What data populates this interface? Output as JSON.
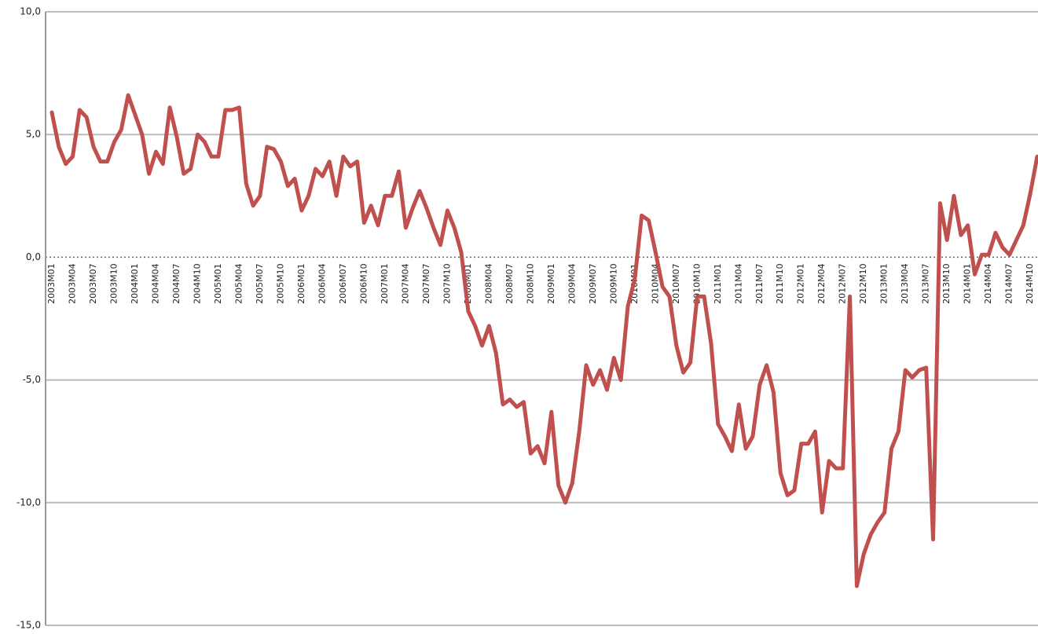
{
  "chart_data": {
    "type": "line",
    "categories": [
      "2003M01",
      null,
      null,
      "2003M04",
      null,
      null,
      "2003M07",
      null,
      null,
      "2003M10",
      null,
      null,
      "2004M01",
      null,
      null,
      "2004M04",
      null,
      null,
      "2004M07",
      null,
      null,
      "2004M10",
      null,
      null,
      "2005M01",
      null,
      null,
      "2005M04",
      null,
      null,
      "2005M07",
      null,
      null,
      "2005M10",
      null,
      null,
      "2006M01",
      null,
      null,
      "2006M04",
      null,
      null,
      "2006M07",
      null,
      null,
      "2006M10",
      null,
      null,
      "2007M01",
      null,
      null,
      "2007M04",
      null,
      null,
      "2007M07",
      null,
      null,
      "2007M10",
      null,
      null,
      "2008M01",
      null,
      null,
      "2008M04",
      null,
      null,
      "2008M07",
      null,
      null,
      "2008M10",
      null,
      null,
      "2009M01",
      null,
      null,
      "2009M04",
      null,
      null,
      "2009M07",
      null,
      null,
      "2009M10",
      null,
      null,
      "2010M01",
      null,
      null,
      "2010M04",
      null,
      null,
      "2010M07",
      null,
      null,
      "2010M10",
      null,
      null,
      "2011M01",
      null,
      null,
      "2011M04",
      null,
      null,
      "2011M07",
      null,
      null,
      "2011M10",
      null,
      null,
      "2012M01",
      null,
      null,
      "2012M04",
      null,
      null,
      "2012M07",
      null,
      null,
      "2012M10",
      null,
      null,
      "2013M01",
      null,
      null,
      "2013M04",
      null,
      null,
      "2013M07",
      null,
      null,
      "2013M10",
      null,
      null,
      "2014M01",
      null,
      null,
      "2014M04",
      null,
      null,
      "2014M07",
      null,
      null,
      "2014M10",
      null
    ],
    "values": [
      5.9,
      4.5,
      3.8,
      4.1,
      6.0,
      5.7,
      4.5,
      3.9,
      3.9,
      4.7,
      5.2,
      6.6,
      5.8,
      5.0,
      3.4,
      4.3,
      3.8,
      6.1,
      4.9,
      3.4,
      3.6,
      5.0,
      4.7,
      4.1,
      4.1,
      6.0,
      6.0,
      6.1,
      3.0,
      2.1,
      2.5,
      4.5,
      4.4,
      3.9,
      2.9,
      3.2,
      1.9,
      2.5,
      3.6,
      3.3,
      3.9,
      2.5,
      4.1,
      3.7,
      3.9,
      1.4,
      2.1,
      1.3,
      2.5,
      2.5,
      3.5,
      1.2,
      2.0,
      2.7,
      2.0,
      1.2,
      0.5,
      1.9,
      1.2,
      0.2,
      -2.2,
      -2.8,
      -3.6,
      -2.8,
      -3.9,
      -6.0,
      -5.8,
      -6.1,
      -5.9,
      -8.0,
      -7.7,
      -8.4,
      -6.3,
      -9.3,
      -10.0,
      -9.2,
      -7.1,
      -4.4,
      -5.2,
      -4.6,
      -5.4,
      -4.1,
      -5.0,
      -2.0,
      -0.9,
      1.7,
      1.5,
      0.2,
      -1.2,
      -1.6,
      -3.6,
      -4.7,
      -4.3,
      -1.6,
      -1.6,
      -3.5,
      -6.8,
      -7.3,
      -7.9,
      -6.0,
      -7.8,
      -7.3,
      -5.2,
      -4.4,
      -5.5,
      -8.8,
      -9.7,
      -9.5,
      -7.6,
      -7.6,
      -7.1,
      -10.4,
      -8.3,
      -8.6,
      -8.6,
      -1.6,
      -13.4,
      -12.1,
      -11.3,
      -10.8,
      -10.4,
      -7.8,
      -7.1,
      -4.6,
      -4.9,
      -4.6,
      -4.5,
      -11.5,
      2.2,
      0.7,
      2.5,
      0.9,
      1.3,
      -0.7,
      0.1,
      0.1,
      1.0,
      0.4,
      0.1,
      0.7,
      1.3,
      2.6,
      4.1
    ],
    "color": "#c0504d",
    "ylim": [
      -15,
      10
    ],
    "yticks": [
      {
        "value": -15,
        "label": "-15,0"
      },
      {
        "value": -10,
        "label": "-10,0"
      },
      {
        "value": -5,
        "label": "-5,0"
      },
      {
        "value": 0,
        "label": "0,0"
      },
      {
        "value": 5,
        "label": "5,0"
      },
      {
        "value": 10,
        "label": "10,0"
      }
    ],
    "grid": true
  }
}
